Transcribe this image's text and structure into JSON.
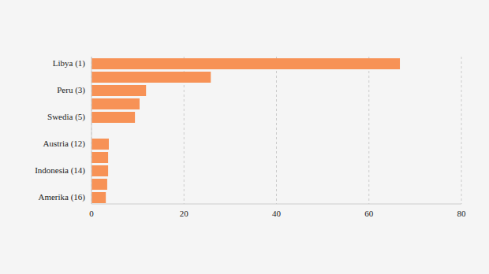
{
  "chart_data": {
    "type": "bar",
    "orientation": "horizontal",
    "categories": [
      "Libya (1)",
      null,
      "Peru (3)",
      null,
      "Swedia (5)",
      null,
      "Austria (12)",
      null,
      "Indonesia (14)",
      null,
      "Amerika (16)"
    ],
    "values": [
      66.7,
      25.8,
      11.8,
      10.4,
      9.4,
      null,
      3.75,
      3.6,
      3.6,
      3.4,
      3.1
    ],
    "color": "#f79256",
    "xlim": [
      0,
      80
    ],
    "xticks": [
      0,
      20,
      40,
      60,
      80
    ],
    "grid": true
  }
}
